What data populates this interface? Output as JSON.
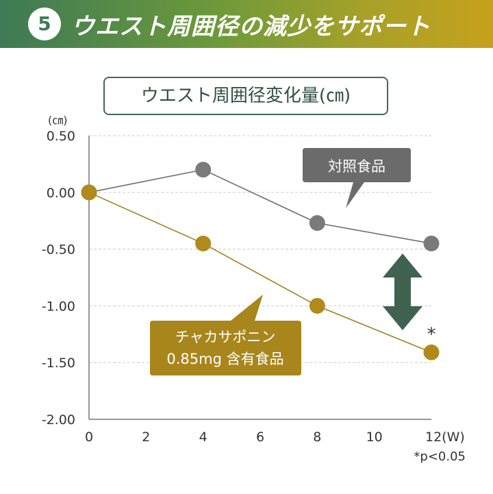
{
  "banner": {
    "number": "5",
    "title": "ウエスト周囲径の減少をサポート"
  },
  "chart_data": {
    "type": "line",
    "title": "ウエスト周囲径変化量(㎝)",
    "unit_label": "(㎝)",
    "xlabel": "",
    "ylabel": "",
    "x": [
      0,
      4,
      8,
      12
    ],
    "x_ticks": [
      "0",
      "2",
      "4",
      "6",
      "8",
      "10",
      "12(W)"
    ],
    "x_tick_values": [
      0,
      2,
      4,
      6,
      8,
      10,
      12
    ],
    "xlim": [
      0,
      12
    ],
    "y_ticks": [
      "0.50",
      "0.00",
      "-0.50",
      "-1.00",
      "-1.50",
      "-2.00"
    ],
    "y_tick_values": [
      0.5,
      0,
      -0.5,
      -1.0,
      -1.5,
      -2.0
    ],
    "ylim": [
      -2.0,
      0.5
    ],
    "grid": true,
    "series": [
      {
        "name": "対照食品",
        "values": [
          0.0,
          0.2,
          -0.27,
          -0.45
        ],
        "color": "#7a7a7a",
        "line_color": "#6f6f6f"
      },
      {
        "name": "チャカサポニン 0.85mg 含有食品",
        "values": [
          0.0,
          -0.45,
          -1.0,
          -1.41
        ],
        "color": "#b08a1c",
        "line_color": "#a0821a"
      }
    ],
    "annotations": {
      "significance_mark": "*",
      "footnote": "*p<0.05"
    }
  },
  "callouts": {
    "control": {
      "label": "対照食品",
      "bg": "#6b6b6b"
    },
    "test": {
      "line1": "チャカサポニン",
      "line2": "0.85mg 含有食品",
      "bg": "#a8861c"
    }
  },
  "colors": {
    "arrow": "#3f6350",
    "axis": "#777777",
    "grid": "#cccccc"
  }
}
